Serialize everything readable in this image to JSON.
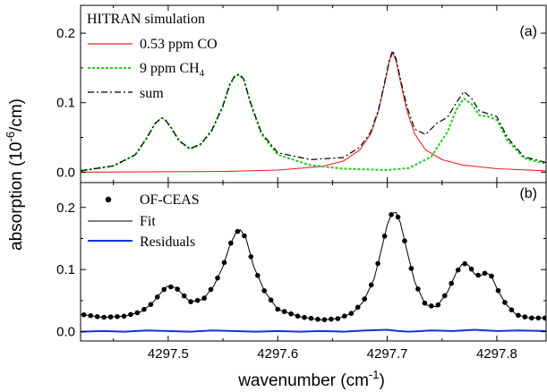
{
  "chart_data": [
    {
      "panel_label": "(a)",
      "type": "line",
      "legend_title": "HITRAN simulation",
      "legend_placement": "top-left",
      "x_range": [
        4297.42,
        4297.845
      ],
      "ylim": [
        -0.015,
        0.24
      ],
      "y_ticks": [
        0.0,
        0.1,
        0.2
      ],
      "y_tick_labels": [
        "0.0",
        "0.1",
        "0.2"
      ],
      "series": [
        {
          "name": "0.53 ppm CO",
          "color": "#e8262a",
          "style": "solid",
          "x": [
            4297.42,
            4297.55,
            4297.6,
            4297.64,
            4297.66,
            4297.675,
            4297.685,
            4297.692,
            4297.698,
            4297.702,
            4297.705,
            4297.708,
            4297.712,
            4297.718,
            4297.725,
            4297.735,
            4297.75,
            4297.77,
            4297.8,
            4297.845
          ],
          "y": [
            0.0,
            0.001,
            0.003,
            0.008,
            0.016,
            0.032,
            0.055,
            0.088,
            0.13,
            0.16,
            0.172,
            0.16,
            0.13,
            0.088,
            0.055,
            0.032,
            0.018,
            0.01,
            0.005,
            0.002
          ]
        },
        {
          "name": "9 ppm CH4",
          "name_sub": "4",
          "name_main": "9 ppm CH",
          "color": "#1fcc1f",
          "style": "dashed",
          "x": [
            4297.42,
            4297.45,
            4297.47,
            4297.48,
            4297.488,
            4297.494,
            4297.497,
            4297.503,
            4297.51,
            4297.52,
            4297.53,
            4297.54,
            4297.55,
            4297.556,
            4297.561,
            4297.565,
            4297.569,
            4297.575,
            4297.585,
            4297.6,
            4297.63,
            4297.66,
            4297.7,
            4297.72,
            4297.74,
            4297.755,
            4297.763,
            4297.77,
            4297.777,
            4297.784,
            4297.792,
            4297.8,
            4297.81,
            4297.825,
            4297.845
          ],
          "y": [
            0.002,
            0.009,
            0.025,
            0.048,
            0.07,
            0.078,
            0.076,
            0.063,
            0.045,
            0.033,
            0.04,
            0.06,
            0.095,
            0.125,
            0.138,
            0.14,
            0.133,
            0.1,
            0.055,
            0.025,
            0.01,
            0.005,
            0.003,
            0.006,
            0.022,
            0.058,
            0.09,
            0.106,
            0.098,
            0.082,
            0.08,
            0.075,
            0.045,
            0.02,
            0.012
          ]
        },
        {
          "name": "sum",
          "color": "#000000",
          "style": "dashdot",
          "x": [
            4297.42,
            4297.45,
            4297.47,
            4297.48,
            4297.488,
            4297.494,
            4297.497,
            4297.503,
            4297.51,
            4297.52,
            4297.53,
            4297.54,
            4297.55,
            4297.556,
            4297.561,
            4297.565,
            4297.569,
            4297.575,
            4297.585,
            4297.6,
            4297.63,
            4297.66,
            4297.675,
            4297.685,
            4297.692,
            4297.698,
            4297.702,
            4297.705,
            4297.708,
            4297.712,
            4297.718,
            4297.725,
            4297.735,
            4297.745,
            4297.755,
            4297.763,
            4297.77,
            4297.777,
            4297.784,
            4297.792,
            4297.8,
            4297.81,
            4297.825,
            4297.845
          ],
          "y": [
            0.002,
            0.009,
            0.025,
            0.048,
            0.07,
            0.078,
            0.076,
            0.063,
            0.045,
            0.034,
            0.041,
            0.061,
            0.096,
            0.126,
            0.139,
            0.141,
            0.134,
            0.101,
            0.057,
            0.028,
            0.018,
            0.021,
            0.036,
            0.058,
            0.09,
            0.132,
            0.162,
            0.175,
            0.163,
            0.134,
            0.094,
            0.062,
            0.054,
            0.07,
            0.079,
            0.1,
            0.116,
            0.106,
            0.088,
            0.084,
            0.08,
            0.049,
            0.022,
            0.014
          ]
        }
      ]
    },
    {
      "panel_label": "(b)",
      "type": "line",
      "legend_placement": "top-left",
      "x_range": [
        4297.42,
        4297.845
      ],
      "ylim": [
        -0.015,
        0.24
      ],
      "y_ticks": [
        0.0,
        0.1,
        0.2
      ],
      "y_tick_labels": [
        "0.0",
        "0.1",
        "0.2"
      ],
      "fit_anchors": {
        "x": [
          4297.42,
          4297.44,
          4297.46,
          4297.475,
          4297.485,
          4297.493,
          4297.499,
          4297.507,
          4297.52,
          4297.532,
          4297.542,
          4297.55,
          4297.556,
          4297.562,
          4297.566,
          4297.571,
          4297.578,
          4297.588,
          4297.6,
          4297.62,
          4297.64,
          4297.655,
          4297.668,
          4297.678,
          4297.688,
          4297.695,
          4297.7,
          4297.704,
          4297.708,
          4297.712,
          4297.718,
          4297.725,
          4297.735,
          4297.745,
          4297.755,
          4297.763,
          4297.768,
          4297.772,
          4297.776,
          4297.78,
          4297.785,
          4297.79,
          4297.795,
          4297.8,
          4297.808,
          4297.818,
          4297.83,
          4297.845
        ],
        "y": [
          0.028,
          0.023,
          0.025,
          0.032,
          0.045,
          0.062,
          0.073,
          0.071,
          0.048,
          0.052,
          0.075,
          0.105,
          0.138,
          0.16,
          0.164,
          0.15,
          0.105,
          0.065,
          0.036,
          0.024,
          0.019,
          0.021,
          0.03,
          0.048,
          0.085,
          0.135,
          0.172,
          0.19,
          0.192,
          0.175,
          0.13,
          0.08,
          0.043,
          0.04,
          0.064,
          0.095,
          0.108,
          0.11,
          0.103,
          0.092,
          0.09,
          0.095,
          0.09,
          0.07,
          0.045,
          0.027,
          0.022,
          0.022
        ]
      },
      "residual_anchors": {
        "x": [
          4297.42,
          4297.44,
          4297.46,
          4297.48,
          4297.5,
          4297.52,
          4297.54,
          4297.56,
          4297.58,
          4297.6,
          4297.62,
          4297.64,
          4297.66,
          4297.68,
          4297.7,
          4297.71,
          4297.72,
          4297.74,
          4297.76,
          4297.78,
          4297.8,
          4297.82,
          4297.845
        ],
        "y": [
          0.0,
          0.001,
          0.0,
          0.002,
          0.001,
          0.0,
          0.002,
          0.001,
          0.0,
          0.001,
          0.0,
          0.001,
          0.0,
          0.002,
          0.003,
          0.001,
          0.0,
          0.002,
          0.001,
          0.003,
          0.001,
          0.002,
          0.001
        ]
      },
      "points_step": 0.0061,
      "series": [
        {
          "name": "OF-CEAS",
          "color": "#000000",
          "style": "dots"
        },
        {
          "name": "Fit",
          "color": "#000000",
          "style": "solid"
        },
        {
          "name": "Residuals",
          "color": "#1632d8",
          "style": "solid"
        }
      ]
    }
  ],
  "axes": {
    "x_ticks": [
      4297.5,
      4297.6,
      4297.7,
      4297.8
    ],
    "x_tick_labels": [
      "4297.5",
      "4297.6",
      "4297.7",
      "4297.8"
    ],
    "xlabel_main": "wavenumber (cm",
    "xlabel_sup": "-1",
    "xlabel_end": ")",
    "ylabel_main": "absorption (10",
    "ylabel_sup": "-6",
    "ylabel_end": "/cm)"
  }
}
